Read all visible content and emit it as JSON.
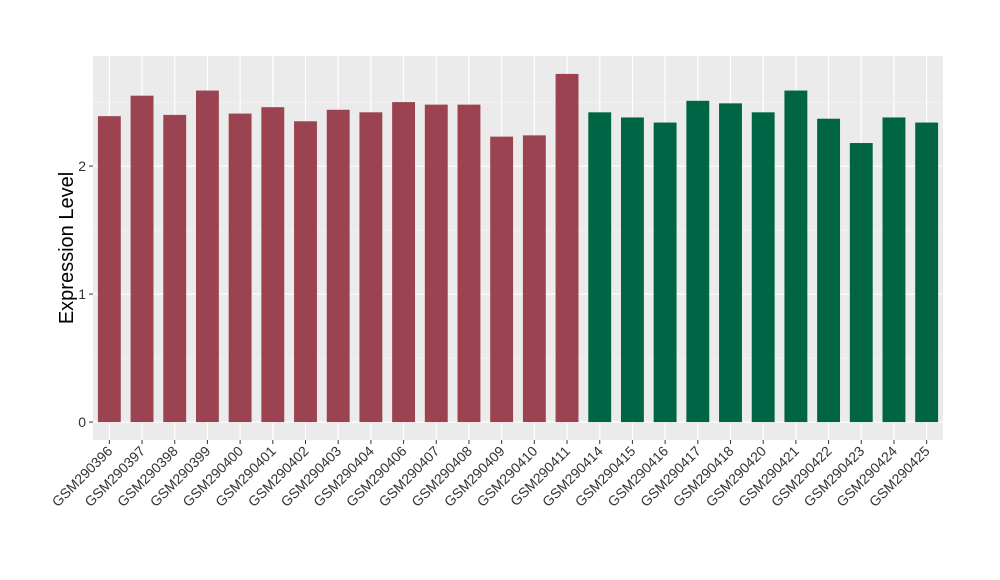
{
  "chart_data": {
    "type": "bar",
    "ylabel": "Expression Level",
    "xlabel": "",
    "ylim": [
      -0.14,
      2.86
    ],
    "y_ticks": [
      0,
      1,
      2
    ],
    "y_tick_labels": [
      "0",
      "1",
      "2"
    ],
    "grid": true,
    "background": "#ebebeb",
    "categories": [
      "GSM290396",
      "GSM290397",
      "GSM290398",
      "GSM290399",
      "GSM290400",
      "GSM290401",
      "GSM290402",
      "GSM290403",
      "GSM290404",
      "GSM290406",
      "GSM290407",
      "GSM290408",
      "GSM290409",
      "GSM290410",
      "GSM290411",
      "GSM290414",
      "GSM290415",
      "GSM290416",
      "GSM290417",
      "GSM290418",
      "GSM290420",
      "GSM290421",
      "GSM290422",
      "GSM290423",
      "GSM290424",
      "GSM290425"
    ],
    "values": [
      2.39,
      2.55,
      2.4,
      2.59,
      2.41,
      2.46,
      2.35,
      2.44,
      2.42,
      2.5,
      2.48,
      2.48,
      2.23,
      2.24,
      2.72,
      2.42,
      2.38,
      2.34,
      2.51,
      2.49,
      2.42,
      2.59,
      2.37,
      2.18,
      2.38,
      2.34
    ],
    "bar_colors": [
      "#9b4350",
      "#9b4350",
      "#9b4350",
      "#9b4350",
      "#9b4350",
      "#9b4350",
      "#9b4350",
      "#9b4350",
      "#9b4350",
      "#9b4350",
      "#9b4350",
      "#9b4350",
      "#9b4350",
      "#9b4350",
      "#9b4350",
      "#006544",
      "#006544",
      "#006544",
      "#006544",
      "#006544",
      "#006544",
      "#006544",
      "#006544",
      "#006544",
      "#006544",
      "#006544"
    ]
  }
}
